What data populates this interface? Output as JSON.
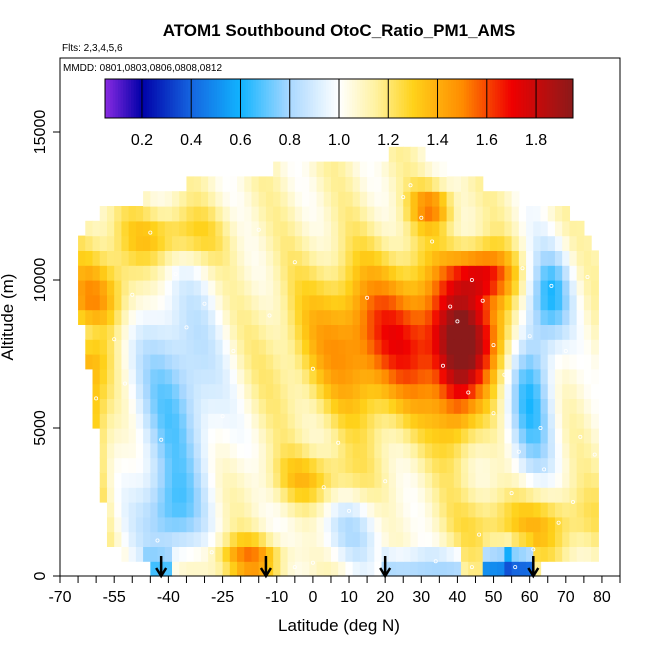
{
  "chart_data": {
    "type": "heatmap",
    "title": "ATOM1 Southbound OtoC_Ratio_PM1_AMS",
    "subtitle_flights": "Flts: 2,3,4,5,6",
    "subtitle_dates": "MMDD: 0801,0803,0806,0808,0812",
    "xlabel": "Latitude (deg N)",
    "ylabel": "Altitude (m)",
    "xlim": [
      -70,
      85
    ],
    "ylim": [
      0,
      17500
    ],
    "x_ticks": [
      -70,
      -55,
      -40,
      -25,
      -10,
      0,
      10,
      20,
      30,
      40,
      50,
      60,
      70,
      80
    ],
    "x_minor_ticks": [
      -65,
      -60,
      -50,
      -45,
      -35,
      -30,
      -20,
      -15,
      -5,
      5,
      15,
      25,
      35,
      45,
      55,
      65,
      75,
      85
    ],
    "y_ticks": [
      0,
      5000,
      10000,
      15000
    ],
    "colorbar": {
      "range": [
        0.05,
        1.95
      ],
      "tick_values": [
        0.2,
        0.4,
        0.6,
        0.8,
        1.0,
        1.2,
        1.4,
        1.6,
        1.8
      ],
      "tick_labels": [
        "0.2",
        "0.4",
        "0.6",
        "0.8",
        "1.0",
        "1.2",
        "1.4",
        "1.6",
        "1.8"
      ],
      "stops": [
        {
          "v": 0.05,
          "c": "#8a2be2"
        },
        {
          "v": 0.2,
          "c": "#0000a8"
        },
        {
          "v": 0.4,
          "c": "#1565e0"
        },
        {
          "v": 0.6,
          "c": "#11b4ff"
        },
        {
          "v": 0.8,
          "c": "#a9d8ff"
        },
        {
          "v": 1.0,
          "c": "#ffffff"
        },
        {
          "v": 1.15,
          "c": "#fff2a0"
        },
        {
          "v": 1.3,
          "c": "#ffd21a"
        },
        {
          "v": 1.5,
          "c": "#ff8c00"
        },
        {
          "v": 1.7,
          "c": "#f00000"
        },
        {
          "v": 1.95,
          "c": "#8b1a1a"
        }
      ]
    },
    "grid": {
      "x_start": -64,
      "x_end": 78,
      "x_step": 2,
      "alt_start": 250,
      "alt_step": 500
    },
    "row_extents": [
      [
        -43,
        62
      ],
      [
        -52,
        79
      ],
      [
        -55,
        79
      ],
      [
        -56,
        79
      ],
      [
        -56,
        79
      ],
      [
        -57,
        80
      ],
      [
        -57,
        80
      ],
      [
        -57,
        80
      ],
      [
        -58,
        80
      ],
      [
        -58,
        80
      ],
      [
        -59,
        80
      ],
      [
        -59,
        80
      ],
      [
        -60,
        80
      ],
      [
        -60,
        80
      ],
      [
        -61,
        80
      ],
      [
        -61,
        80
      ],
      [
        -62,
        79
      ],
      [
        -63,
        79
      ],
      [
        -64,
        79
      ],
      [
        -64,
        79
      ],
      [
        -64,
        78
      ],
      [
        -63,
        77
      ],
      [
        -63,
        76
      ],
      [
        -61,
        74
      ],
      [
        -57,
        70
      ],
      [
        -45,
        55
      ],
      [
        -34,
        45
      ],
      [
        -10,
        35
      ],
      [
        22,
        30
      ]
    ],
    "surface_low_regions": [
      [
        -46,
        -40,
        0.6
      ],
      [
        54,
        60,
        0.25
      ],
      [
        48,
        54,
        0.35
      ],
      [
        20,
        40,
        0.75
      ]
    ],
    "arrows_lat": [
      -42,
      -13,
      20,
      61
    ],
    "sample_points": [
      [
        -43,
        1200
      ],
      [
        -28,
        800
      ],
      [
        -5,
        300
      ],
      [
        0,
        450
      ],
      [
        34,
        500
      ],
      [
        44,
        300
      ],
      [
        56,
        300
      ],
      [
        61,
        900
      ],
      [
        -60,
        6000
      ],
      [
        -55,
        8000
      ],
      [
        -50,
        9500
      ],
      [
        -45,
        11600
      ],
      [
        -38,
        10200
      ],
      [
        -30,
        9200
      ],
      [
        -22,
        7600
      ],
      [
        -12,
        8800
      ],
      [
        -5,
        10600
      ],
      [
        0,
        7000
      ],
      [
        3,
        3000
      ],
      [
        7,
        4500
      ],
      [
        15,
        9400
      ],
      [
        20,
        3200
      ],
      [
        27,
        13200
      ],
      [
        33,
        11300
      ],
      [
        36,
        7100
      ],
      [
        40,
        8600
      ],
      [
        43,
        6200
      ],
      [
        47,
        9300
      ],
      [
        50,
        5500
      ],
      [
        53,
        6800
      ],
      [
        57,
        4200
      ],
      [
        60,
        8100
      ],
      [
        63,
        5000
      ],
      [
        66,
        9800
      ],
      [
        70,
        7600
      ],
      [
        74,
        4700
      ],
      [
        76,
        10100
      ],
      [
        78,
        4100
      ],
      [
        72,
        2500
      ],
      [
        64,
        3600
      ],
      [
        58,
        10400
      ],
      [
        50,
        7800
      ],
      [
        44,
        10000
      ],
      [
        38,
        9100
      ],
      [
        30,
        12100
      ],
      [
        25,
        12800
      ],
      [
        -15,
        11700
      ],
      [
        -35,
        8400
      ],
      [
        -42,
        4600
      ],
      [
        -52,
        6500
      ],
      [
        -25,
        5400
      ],
      [
        10,
        2200
      ],
      [
        46,
        1400
      ],
      [
        55,
        2800
      ],
      [
        68,
        1800
      ]
    ]
  }
}
